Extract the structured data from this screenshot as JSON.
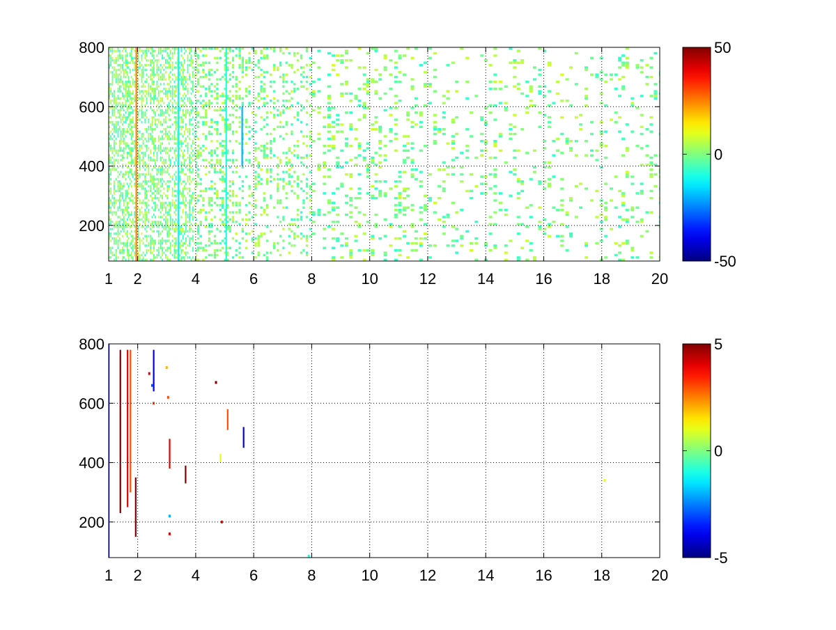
{
  "chart_data": [
    {
      "type": "heatmap",
      "title": "",
      "xlabel": "",
      "ylabel": "",
      "xlim": [
        1,
        20
      ],
      "ylim": [
        80,
        800
      ],
      "xticks": [
        1,
        2,
        4,
        6,
        8,
        10,
        12,
        14,
        16,
        18,
        20
      ],
      "xtick_labels": [
        "1",
        "2",
        "4",
        "6",
        "8",
        "10",
        "12",
        "14",
        "16",
        "18",
        "20"
      ],
      "yticks": [
        200,
        400,
        600,
        800
      ],
      "ytick_labels": [
        "200",
        "400",
        "600",
        "800"
      ],
      "grid": true,
      "colormap": "jet",
      "colorbar": {
        "min": -50,
        "max": 50,
        "ticks": [
          -50,
          0,
          50
        ],
        "tick_labels": [
          "-50",
          "0",
          "50"
        ]
      },
      "density_profile": [
        [
          1,
          0.55
        ],
        [
          2,
          0.5
        ],
        [
          3,
          0.5
        ],
        [
          4,
          0.38
        ],
        [
          5,
          0.32
        ],
        [
          6,
          0.25
        ],
        [
          7,
          0.22
        ],
        [
          8,
          0.2
        ],
        [
          9,
          0.2
        ],
        [
          10,
          0.18
        ],
        [
          12,
          0.14
        ],
        [
          14,
          0.12
        ],
        [
          16,
          0.11
        ],
        [
          18,
          0.13
        ],
        [
          20,
          0.12
        ]
      ],
      "streaks": [
        {
          "x": 1.95,
          "y1": 80,
          "y2": 800,
          "value": 25
        },
        {
          "x": 3.4,
          "y1": 80,
          "y2": 800,
          "value": -12
        },
        {
          "x": 5.05,
          "y1": 80,
          "y2": 800,
          "value": -10
        },
        {
          "x": 5.6,
          "y1": 400,
          "y2": 600,
          "value": -20
        }
      ],
      "value_mean": 0,
      "value_spread": 8
    },
    {
      "type": "heatmap",
      "title": "",
      "xlabel": "",
      "ylabel": "",
      "xlim": [
        1,
        20
      ],
      "ylim": [
        80,
        800
      ],
      "xticks": [
        1,
        2,
        4,
        6,
        8,
        10,
        12,
        14,
        16,
        18,
        20
      ],
      "xtick_labels": [
        "1",
        "2",
        "4",
        "6",
        "8",
        "10",
        "12",
        "14",
        "16",
        "18",
        "20"
      ],
      "yticks": [
        200,
        400,
        600,
        800
      ],
      "ytick_labels": [
        "200",
        "400",
        "600",
        "800"
      ],
      "grid": true,
      "colormap": "jet",
      "colorbar": {
        "min": -5,
        "max": 5,
        "ticks": [
          -5,
          0,
          5
        ],
        "tick_labels": [
          "-5",
          "0",
          "5"
        ]
      },
      "streaks": [
        {
          "x": 1.0,
          "y1": 80,
          "y2": 800,
          "value": -4
        },
        {
          "x": 1.4,
          "y1": 230,
          "y2": 780,
          "value": 5
        },
        {
          "x": 1.65,
          "y1": 250,
          "y2": 780,
          "value": 4
        },
        {
          "x": 1.75,
          "y1": 300,
          "y2": 780,
          "value": 3
        },
        {
          "x": 1.93,
          "y1": 150,
          "y2": 350,
          "value": 5
        },
        {
          "x": 2.55,
          "y1": 640,
          "y2": 780,
          "value": -4
        },
        {
          "x": 3.1,
          "y1": 380,
          "y2": 480,
          "value": 4
        },
        {
          "x": 3.65,
          "y1": 330,
          "y2": 390,
          "value": 5
        },
        {
          "x": 5.1,
          "y1": 510,
          "y2": 580,
          "value": 3
        },
        {
          "x": 5.65,
          "y1": 450,
          "y2": 520,
          "value": -4
        },
        {
          "x": 4.85,
          "y1": 400,
          "y2": 430,
          "value": 1
        }
      ],
      "points": [
        [
          2.4,
          700,
          4
        ],
        [
          2.5,
          660,
          -3
        ],
        [
          3.0,
          720,
          2
        ],
        [
          3.05,
          620,
          3
        ],
        [
          3.1,
          220,
          -2
        ],
        [
          3.1,
          160,
          4
        ],
        [
          4.7,
          670,
          5
        ],
        [
          4.9,
          200,
          4
        ],
        [
          18.1,
          340,
          1
        ],
        [
          7.9,
          85,
          -1
        ],
        [
          2.55,
          600,
          3
        ]
      ]
    }
  ]
}
